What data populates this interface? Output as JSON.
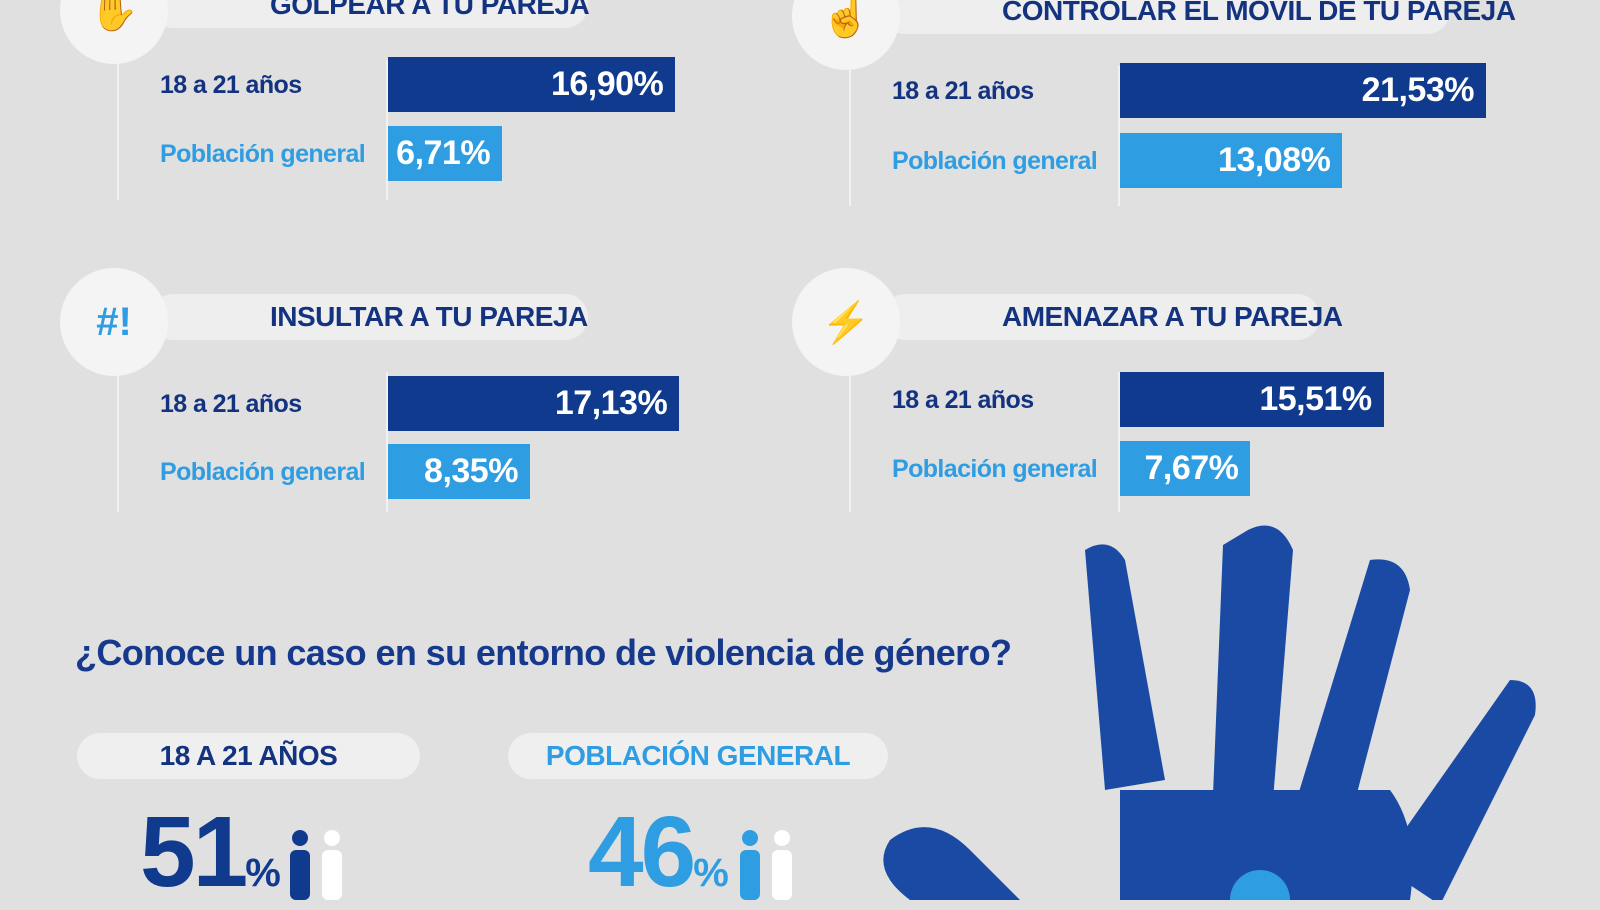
{
  "colors": {
    "youth": "#0f3a8e",
    "general": "#2f9de2",
    "background": "#e0e0e0"
  },
  "chart_data": [
    {
      "type": "bar",
      "title": "GOLPEAR A TU PAREJA",
      "icon": "hand-slap-icon",
      "categories": [
        "18 a 21 años",
        "Población general"
      ],
      "values": [
        16.9,
        6.71
      ],
      "labels": [
        "16,90%",
        "6,71%"
      ]
    },
    {
      "type": "bar",
      "title": "CONTROLAR EL MÓVIL DE TU PAREJA",
      "icon": "phone-touch-icon",
      "categories": [
        "18 a 21 años",
        "Población general"
      ],
      "values": [
        21.53,
        13.08
      ],
      "labels": [
        "21,53%",
        "13,08%"
      ]
    },
    {
      "type": "bar",
      "title": "INSULTAR A TU PAREJA",
      "icon": "speech-bubble-swear-icon",
      "categories": [
        "18 a 21 años",
        "Población general"
      ],
      "values": [
        17.13,
        8.35
      ],
      "labels": [
        "17,13%",
        "8,35%"
      ]
    },
    {
      "type": "bar",
      "title": "AMENAZAR A TU PAREJA",
      "icon": "threatened-person-icon",
      "categories": [
        "18 a 21 años",
        "Población general"
      ],
      "values": [
        15.51,
        7.67
      ],
      "labels": [
        "15,51%",
        "7,67%"
      ]
    }
  ],
  "question": {
    "title": "¿Conoce un caso en su entorno de violencia de género?",
    "groups": [
      {
        "label": "18 A 21 AÑOS",
        "value": "51",
        "unit": "%"
      },
      {
        "label": "POBLACIÓN GENERAL",
        "value": "46",
        "unit": "%"
      }
    ]
  }
}
